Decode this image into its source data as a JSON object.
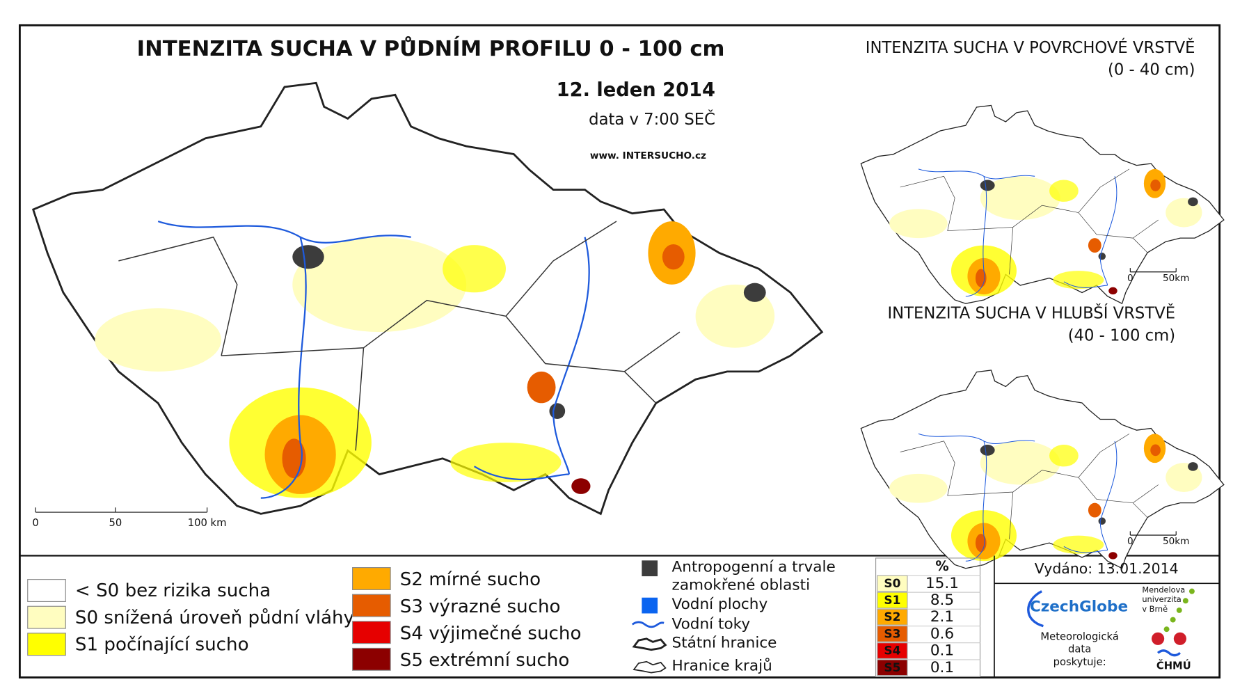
{
  "main_map": {
    "title": "INTENZITA SUCHA V PŮDNÍM PROFILU 0 - 100 cm",
    "date": "12. leden 2014",
    "time": "data v 7:00 SEČ",
    "website": "www. INTERSUCHO.cz",
    "scale": [
      "0",
      "50",
      "100 km"
    ]
  },
  "insets": [
    {
      "title": "INTENZITA SUCHA V POVRCHOVÉ VRSTVĚ",
      "subtitle": "(0 - 40 cm)",
      "scale": [
        "0",
        "50km"
      ]
    },
    {
      "title": "INTENZITA SUCHA V HLUBŠÍ VRSTVĚ",
      "subtitle": "(40 - 100 cm)",
      "scale": [
        "0",
        "50km"
      ]
    }
  ],
  "legend": {
    "classes": [
      {
        "label": "< S0 bez rizika sucha",
        "color": "#ffffff"
      },
      {
        "label": "S0 snížená úroveň půdní vláhy",
        "color": "#fffdc0"
      },
      {
        "label": "S1 počínající sucho",
        "color": "#ffff00"
      },
      {
        "label": "S2 mírné sucho",
        "color": "#ffaa00"
      },
      {
        "label": "S3 výrazné sucho",
        "color": "#e65c00"
      },
      {
        "label": "S4 výjimečné sucho",
        "color": "#e60000"
      },
      {
        "label": "S5 extrémní sucho",
        "color": "#8c0000"
      }
    ],
    "features": [
      {
        "label_lines": [
          "Antropogenní a trvale",
          "zamokřené oblasti"
        ],
        "color": "#3c3c3c"
      },
      {
        "label_lines": [
          "Vodní plochy"
        ],
        "color": "#0a64f0"
      },
      {
        "label_lines": [
          "Vodní toky"
        ],
        "color": "#1e5adc"
      },
      {
        "label_lines": [
          "Státní hranice"
        ],
        "color": "#222222"
      },
      {
        "label_lines": [
          "Hranice krajů"
        ],
        "color": "#222222"
      }
    ]
  },
  "stats": {
    "header": "%",
    "rows": [
      {
        "class": "S0",
        "value": 15.1,
        "color": "#fffdc0"
      },
      {
        "class": "S1",
        "value": 8.5,
        "color": "#ffff00"
      },
      {
        "class": "S2",
        "value": 2.1,
        "color": "#ffaa00"
      },
      {
        "class": "S3",
        "value": 0.6,
        "color": "#e65c00"
      },
      {
        "class": "S4",
        "value": 0.1,
        "color": "#e60000"
      },
      {
        "class": "S5",
        "value": 0.1,
        "color": "#8c0000"
      }
    ]
  },
  "issued": "Vydáno: 13.01.2014",
  "logos": {
    "czechglobe": "CzechGlobe",
    "mendel": [
      "Mendelova",
      "univerzita",
      "v Brně"
    ],
    "provider": [
      "Meteorologická",
      "data",
      "poskytuje:"
    ],
    "chmu": "ČHMÚ"
  }
}
